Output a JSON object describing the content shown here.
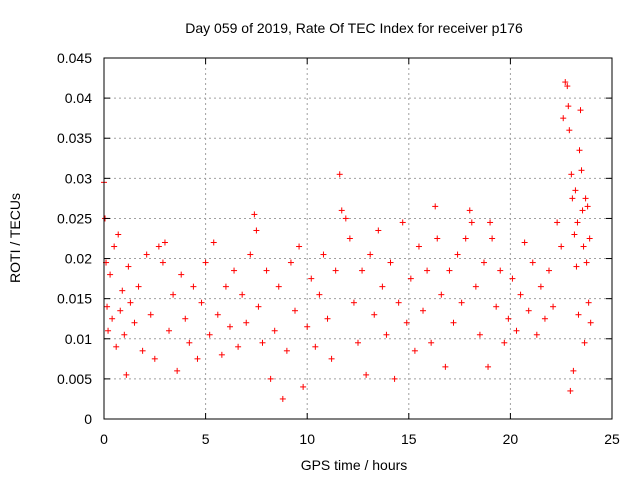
{
  "chart_data": {
    "type": "scatter",
    "title": "Day 059 of 2019, Rate Of TEC Index for receiver p176",
    "xlabel": "GPS time / hours",
    "ylabel": "ROTI / TECUs",
    "xlim": [
      0,
      25
    ],
    "ylim": [
      0,
      0.045
    ],
    "xticks": [
      0,
      5,
      10,
      15,
      20,
      25
    ],
    "xtick_labels": [
      "0",
      "5",
      "10",
      "15",
      "20",
      "25"
    ],
    "yticks": [
      0,
      0.005,
      0.01,
      0.015,
      0.02,
      0.025,
      0.03,
      0.035,
      0.04,
      0.045
    ],
    "ytick_labels": [
      "0",
      "0.005",
      "0.01",
      "0.015",
      "0.02",
      "0.025",
      "0.03",
      "0.035",
      "0.04",
      "0.045"
    ],
    "grid": true,
    "marker": "+",
    "color": "#ff0000",
    "series": [
      {
        "name": "ROTI",
        "points": [
          [
            0.0,
            0.0295
          ],
          [
            0.05,
            0.025
          ],
          [
            0.1,
            0.0195
          ],
          [
            0.15,
            0.014
          ],
          [
            0.2,
            0.011
          ],
          [
            0.3,
            0.018
          ],
          [
            0.4,
            0.0125
          ],
          [
            0.5,
            0.0215
          ],
          [
            0.6,
            0.009
          ],
          [
            0.7,
            0.023
          ],
          [
            0.8,
            0.0135
          ],
          [
            0.9,
            0.016
          ],
          [
            1.0,
            0.0105
          ],
          [
            1.1,
            0.0055
          ],
          [
            1.2,
            0.019
          ],
          [
            1.3,
            0.0145
          ],
          [
            1.5,
            0.012
          ],
          [
            1.7,
            0.0165
          ],
          [
            1.9,
            0.0085
          ],
          [
            2.1,
            0.0205
          ],
          [
            2.3,
            0.013
          ],
          [
            2.5,
            0.0075
          ],
          [
            2.7,
            0.0215
          ],
          [
            2.9,
            0.0195
          ],
          [
            3.0,
            0.022
          ],
          [
            3.2,
            0.011
          ],
          [
            3.4,
            0.0155
          ],
          [
            3.6,
            0.006
          ],
          [
            3.8,
            0.018
          ],
          [
            4.0,
            0.0125
          ],
          [
            4.2,
            0.0095
          ],
          [
            4.4,
            0.0165
          ],
          [
            4.6,
            0.0075
          ],
          [
            4.8,
            0.0145
          ],
          [
            5.0,
            0.0195
          ],
          [
            5.2,
            0.0105
          ],
          [
            5.4,
            0.022
          ],
          [
            5.6,
            0.013
          ],
          [
            5.8,
            0.008
          ],
          [
            6.0,
            0.0165
          ],
          [
            6.2,
            0.0115
          ],
          [
            6.4,
            0.0185
          ],
          [
            6.6,
            0.009
          ],
          [
            6.8,
            0.0155
          ],
          [
            7.0,
            0.012
          ],
          [
            7.2,
            0.0205
          ],
          [
            7.4,
            0.0255
          ],
          [
            7.5,
            0.0235
          ],
          [
            7.6,
            0.014
          ],
          [
            7.8,
            0.0095
          ],
          [
            8.0,
            0.0185
          ],
          [
            8.2,
            0.005
          ],
          [
            8.4,
            0.011
          ],
          [
            8.6,
            0.0165
          ],
          [
            8.8,
            0.0025
          ],
          [
            9.0,
            0.0085
          ],
          [
            9.2,
            0.0195
          ],
          [
            9.4,
            0.0135
          ],
          [
            9.6,
            0.0215
          ],
          [
            9.8,
            0.004
          ],
          [
            10.0,
            0.0115
          ],
          [
            10.2,
            0.0175
          ],
          [
            10.4,
            0.009
          ],
          [
            10.6,
            0.0155
          ],
          [
            10.8,
            0.0205
          ],
          [
            11.0,
            0.0125
          ],
          [
            11.2,
            0.0075
          ],
          [
            11.4,
            0.0185
          ],
          [
            11.6,
            0.0305
          ],
          [
            11.7,
            0.026
          ],
          [
            11.9,
            0.025
          ],
          [
            12.1,
            0.0225
          ],
          [
            12.3,
            0.0145
          ],
          [
            12.5,
            0.0095
          ],
          [
            12.7,
            0.0185
          ],
          [
            12.9,
            0.0055
          ],
          [
            13.1,
            0.0205
          ],
          [
            13.3,
            0.013
          ],
          [
            13.5,
            0.0235
          ],
          [
            13.7,
            0.0165
          ],
          [
            13.9,
            0.0105
          ],
          [
            14.1,
            0.0195
          ],
          [
            14.3,
            0.005
          ],
          [
            14.5,
            0.0145
          ],
          [
            14.7,
            0.0245
          ],
          [
            14.9,
            0.012
          ],
          [
            15.1,
            0.0175
          ],
          [
            15.3,
            0.0085
          ],
          [
            15.5,
            0.0215
          ],
          [
            15.7,
            0.0135
          ],
          [
            15.9,
            0.0185
          ],
          [
            16.1,
            0.0095
          ],
          [
            16.3,
            0.0265
          ],
          [
            16.4,
            0.0225
          ],
          [
            16.6,
            0.0155
          ],
          [
            16.8,
            0.0065
          ],
          [
            17.0,
            0.0185
          ],
          [
            17.2,
            0.012
          ],
          [
            17.4,
            0.0205
          ],
          [
            17.6,
            0.0145
          ],
          [
            17.8,
            0.0225
          ],
          [
            18.0,
            0.026
          ],
          [
            18.1,
            0.0245
          ],
          [
            18.3,
            0.0165
          ],
          [
            18.5,
            0.0105
          ],
          [
            18.7,
            0.0195
          ],
          [
            18.9,
            0.0065
          ],
          [
            19.0,
            0.0245
          ],
          [
            19.1,
            0.0225
          ],
          [
            19.3,
            0.014
          ],
          [
            19.5,
            0.0185
          ],
          [
            19.7,
            0.0095
          ],
          [
            19.9,
            0.0125
          ],
          [
            20.1,
            0.0175
          ],
          [
            20.3,
            0.011
          ],
          [
            20.5,
            0.0155
          ],
          [
            20.7,
            0.022
          ],
          [
            20.9,
            0.0135
          ],
          [
            21.1,
            0.0195
          ],
          [
            21.3,
            0.0105
          ],
          [
            21.5,
            0.0165
          ],
          [
            21.7,
            0.0125
          ],
          [
            21.9,
            0.0185
          ],
          [
            22.1,
            0.014
          ],
          [
            22.3,
            0.0245
          ],
          [
            22.5,
            0.0215
          ],
          [
            22.6,
            0.0375
          ],
          [
            22.7,
            0.042
          ],
          [
            22.8,
            0.0415
          ],
          [
            22.85,
            0.039
          ],
          [
            22.9,
            0.036
          ],
          [
            22.95,
            0.0035
          ],
          [
            23.0,
            0.0305
          ],
          [
            23.05,
            0.0275
          ],
          [
            23.1,
            0.006
          ],
          [
            23.15,
            0.023
          ],
          [
            23.2,
            0.0285
          ],
          [
            23.25,
            0.019
          ],
          [
            23.3,
            0.0245
          ],
          [
            23.35,
            0.013
          ],
          [
            23.4,
            0.0335
          ],
          [
            23.45,
            0.0385
          ],
          [
            23.5,
            0.031
          ],
          [
            23.55,
            0.026
          ],
          [
            23.6,
            0.0215
          ],
          [
            23.65,
            0.0095
          ],
          [
            23.7,
            0.0275
          ],
          [
            23.75,
            0.0195
          ],
          [
            23.8,
            0.0265
          ],
          [
            23.85,
            0.0145
          ],
          [
            23.9,
            0.0225
          ],
          [
            23.95,
            0.012
          ]
        ]
      }
    ]
  }
}
